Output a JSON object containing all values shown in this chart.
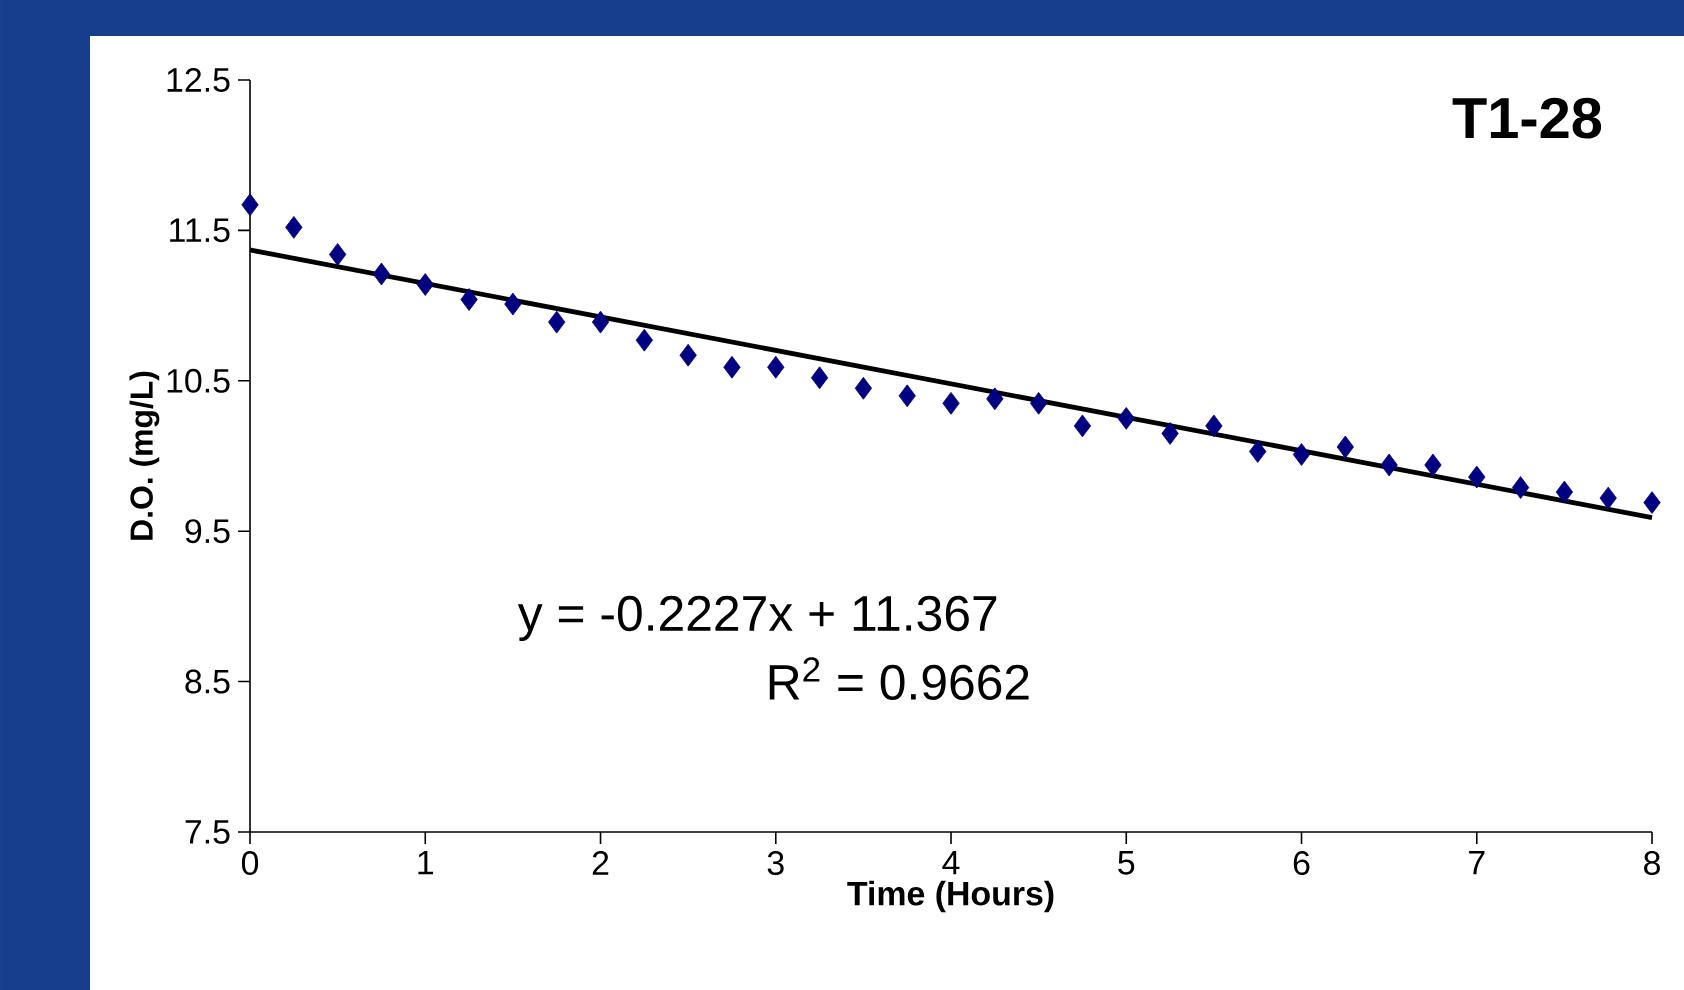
{
  "chart_data": {
    "type": "scatter",
    "title": "T1-28",
    "xlabel": "Time (Hours)",
    "ylabel": "D.O. (mg/L)",
    "xlim": [
      0,
      8
    ],
    "ylim": [
      7.5,
      12.5
    ],
    "xticks": [
      0,
      1,
      2,
      3,
      4,
      5,
      6,
      7,
      8
    ],
    "yticks": [
      7.5,
      8.5,
      9.5,
      10.5,
      11.5,
      12.5
    ],
    "grid": false,
    "series": [
      {
        "marker": "diamond",
        "color": "#000080",
        "x": [
          0,
          0.25,
          0.5,
          0.75,
          1,
          1.25,
          1.5,
          1.75,
          2,
          2.25,
          2.5,
          2.75,
          3,
          3.25,
          3.5,
          3.75,
          4,
          4.25,
          4.5,
          4.75,
          5,
          5.25,
          5.5,
          5.75,
          6,
          6.25,
          6.5,
          6.75,
          7,
          7.25,
          7.5,
          7.75,
          8
        ],
        "values": [
          11.67,
          11.52,
          11.34,
          11.21,
          11.14,
          11.04,
          11.01,
          10.89,
          10.89,
          10.77,
          10.67,
          10.59,
          10.59,
          10.52,
          10.45,
          10.4,
          10.35,
          10.38,
          10.35,
          10.2,
          10.25,
          10.15,
          10.2,
          10.03,
          10.01,
          10.06,
          9.94,
          9.94,
          9.86,
          9.79,
          9.76,
          9.72,
          9.69
        ]
      },
      {
        "type": "line",
        "marker": "none",
        "line_style": "solid",
        "color": "#000000",
        "x": [
          0,
          8
        ],
        "values": [
          11.37,
          9.59
        ]
      }
    ],
    "annotations": [
      "y = -0.2227x + 11.367",
      "R$^{2}$ = 0.9662"
    ]
  }
}
